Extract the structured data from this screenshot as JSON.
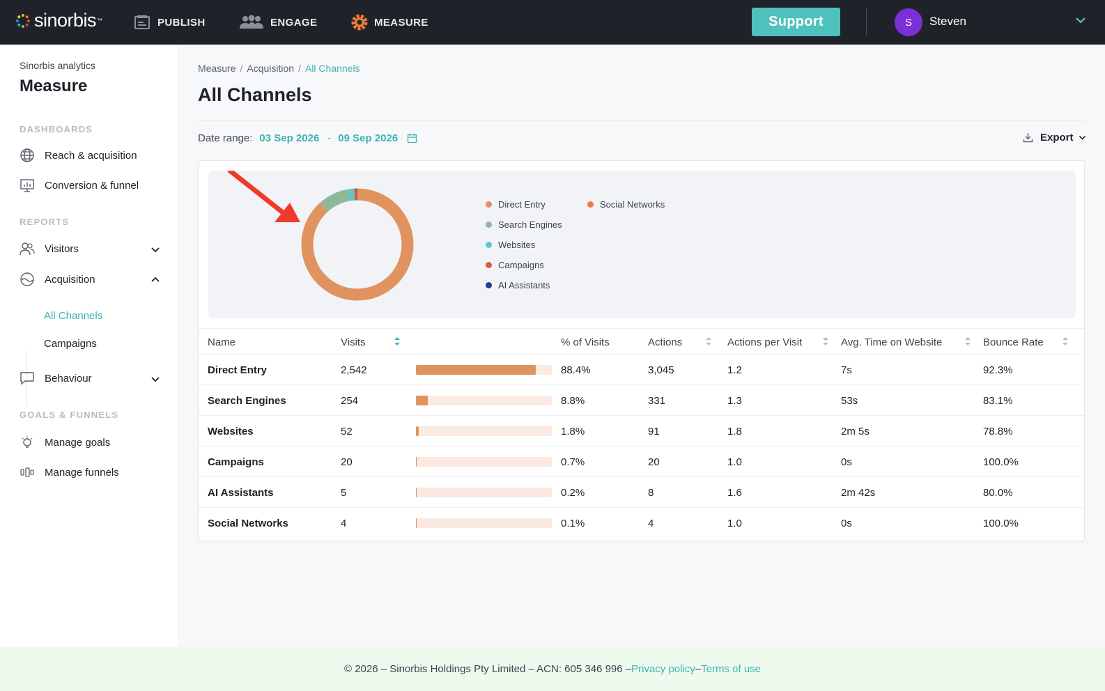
{
  "brand": {
    "name": "sinorbis",
    "mark": "™"
  },
  "nav": [
    {
      "label": "PUBLISH",
      "icon": "publish-icon"
    },
    {
      "label": "ENGAGE",
      "icon": "engage-icon"
    },
    {
      "label": "MEASURE",
      "icon": "measure-icon",
      "active": true
    }
  ],
  "support_label": "Support",
  "user": {
    "initial": "S",
    "name": "Steven"
  },
  "sidebar": {
    "subtitle": "Sinorbis analytics",
    "title": "Measure",
    "sections": {
      "dashboards": "DASHBOARDS",
      "reports": "REPORTS",
      "goals": "GOALS & FUNNELS"
    },
    "items": {
      "reach": "Reach & acquisition",
      "conversion": "Conversion & funnel",
      "visitors": "Visitors",
      "acquisition": "Acquisition",
      "all_channels": "All Channels",
      "campaigns": "Campaigns",
      "behaviour": "Behaviour",
      "manage_goals": "Manage goals",
      "manage_funnels": "Manage funnels"
    }
  },
  "breadcrumb": [
    "Measure",
    "Acquisition",
    "All Channels"
  ],
  "page_title": "All Channels",
  "date_range": {
    "label": "Date range:",
    "start": "03 Sep 2026",
    "sep": "-",
    "end": "09 Sep 2026"
  },
  "export_label": "Export",
  "colors": {
    "direct": "#e0925f",
    "search": "#8fb89a",
    "websites": "#5cc9c7",
    "campaigns": "#e05a3a",
    "ai": "#1f3f8f",
    "social": "#ef7a3a",
    "accent": "#3fb3b0"
  },
  "chart_data": {
    "type": "pie",
    "categories": [
      "Direct Entry",
      "Search Engines",
      "Websites",
      "Campaigns",
      "AI Assistants",
      "Social Networks"
    ],
    "values": [
      2542,
      254,
      52,
      20,
      5,
      4
    ],
    "legend_placement": "right"
  },
  "table": {
    "headers": {
      "name": "Name",
      "visits": "Visits",
      "pct": "% of Visits",
      "actions": "Actions",
      "apv": "Actions per Visit",
      "time": "Avg. Time on Website",
      "bounce": "Bounce Rate"
    },
    "rows": [
      {
        "name": "Direct Entry",
        "visits": "2,542",
        "pct": "88.4%",
        "share": 0.884,
        "actions": "3,045",
        "apv": "1.2",
        "time": "7s",
        "bounce": "92.3%"
      },
      {
        "name": "Search Engines",
        "visits": "254",
        "pct": "8.8%",
        "share": 0.088,
        "actions": "331",
        "apv": "1.3",
        "time": "53s",
        "bounce": "83.1%"
      },
      {
        "name": "Websites",
        "visits": "52",
        "pct": "1.8%",
        "share": 0.018,
        "actions": "91",
        "apv": "1.8",
        "time": "2m 5s",
        "bounce": "78.8%"
      },
      {
        "name": "Campaigns",
        "visits": "20",
        "pct": "0.7%",
        "share": 0.007,
        "actions": "20",
        "apv": "1.0",
        "time": "0s",
        "bounce": "100.0%"
      },
      {
        "name": "AI Assistants",
        "visits": "5",
        "pct": "0.2%",
        "share": 0.002,
        "actions": "8",
        "apv": "1.6",
        "time": "2m 42s",
        "bounce": "80.0%"
      },
      {
        "name": "Social Networks",
        "visits": "4",
        "pct": "0.1%",
        "share": 0.001,
        "actions": "4",
        "apv": "1.0",
        "time": "0s",
        "bounce": "100.0%"
      }
    ]
  },
  "footer": {
    "text": "© 2026 – Sinorbis Holdings Pty Limited – ACN: 605 346 996 – ",
    "privacy": "Privacy policy",
    "dash": " – ",
    "terms": "Terms of use"
  }
}
